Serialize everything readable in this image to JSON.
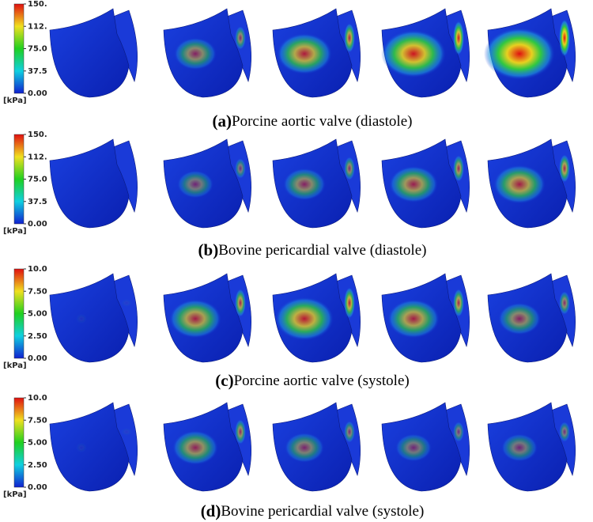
{
  "panels": [
    {
      "label": "(a)",
      "caption": "Porcine aortic valve (diastole)",
      "colorbar": {
        "ticks": [
          "150.",
          "112.",
          "75.0",
          "37.5",
          "0.00"
        ],
        "unit": "[kPa]"
      }
    },
    {
      "label": "(b)",
      "caption": "Bovine pericardial valve (diastole)",
      "colorbar": {
        "ticks": [
          "150.",
          "112.",
          "75.0",
          "37.5",
          "0.00"
        ],
        "unit": "[kPa]"
      }
    },
    {
      "label": "(c)",
      "caption": "Porcine aortic valve (systole)",
      "colorbar": {
        "ticks": [
          "10.0",
          "7.50",
          "5.00",
          "2.50",
          "0.00"
        ],
        "unit": "[kPa]"
      }
    },
    {
      "label": "(d)",
      "caption": "Bovine pericardial valve (systole)",
      "colorbar": {
        "ticks": [
          "10.0",
          "7.50",
          "5.00",
          "2.50",
          "0.00"
        ],
        "unit": "[kPa]"
      }
    }
  ]
}
